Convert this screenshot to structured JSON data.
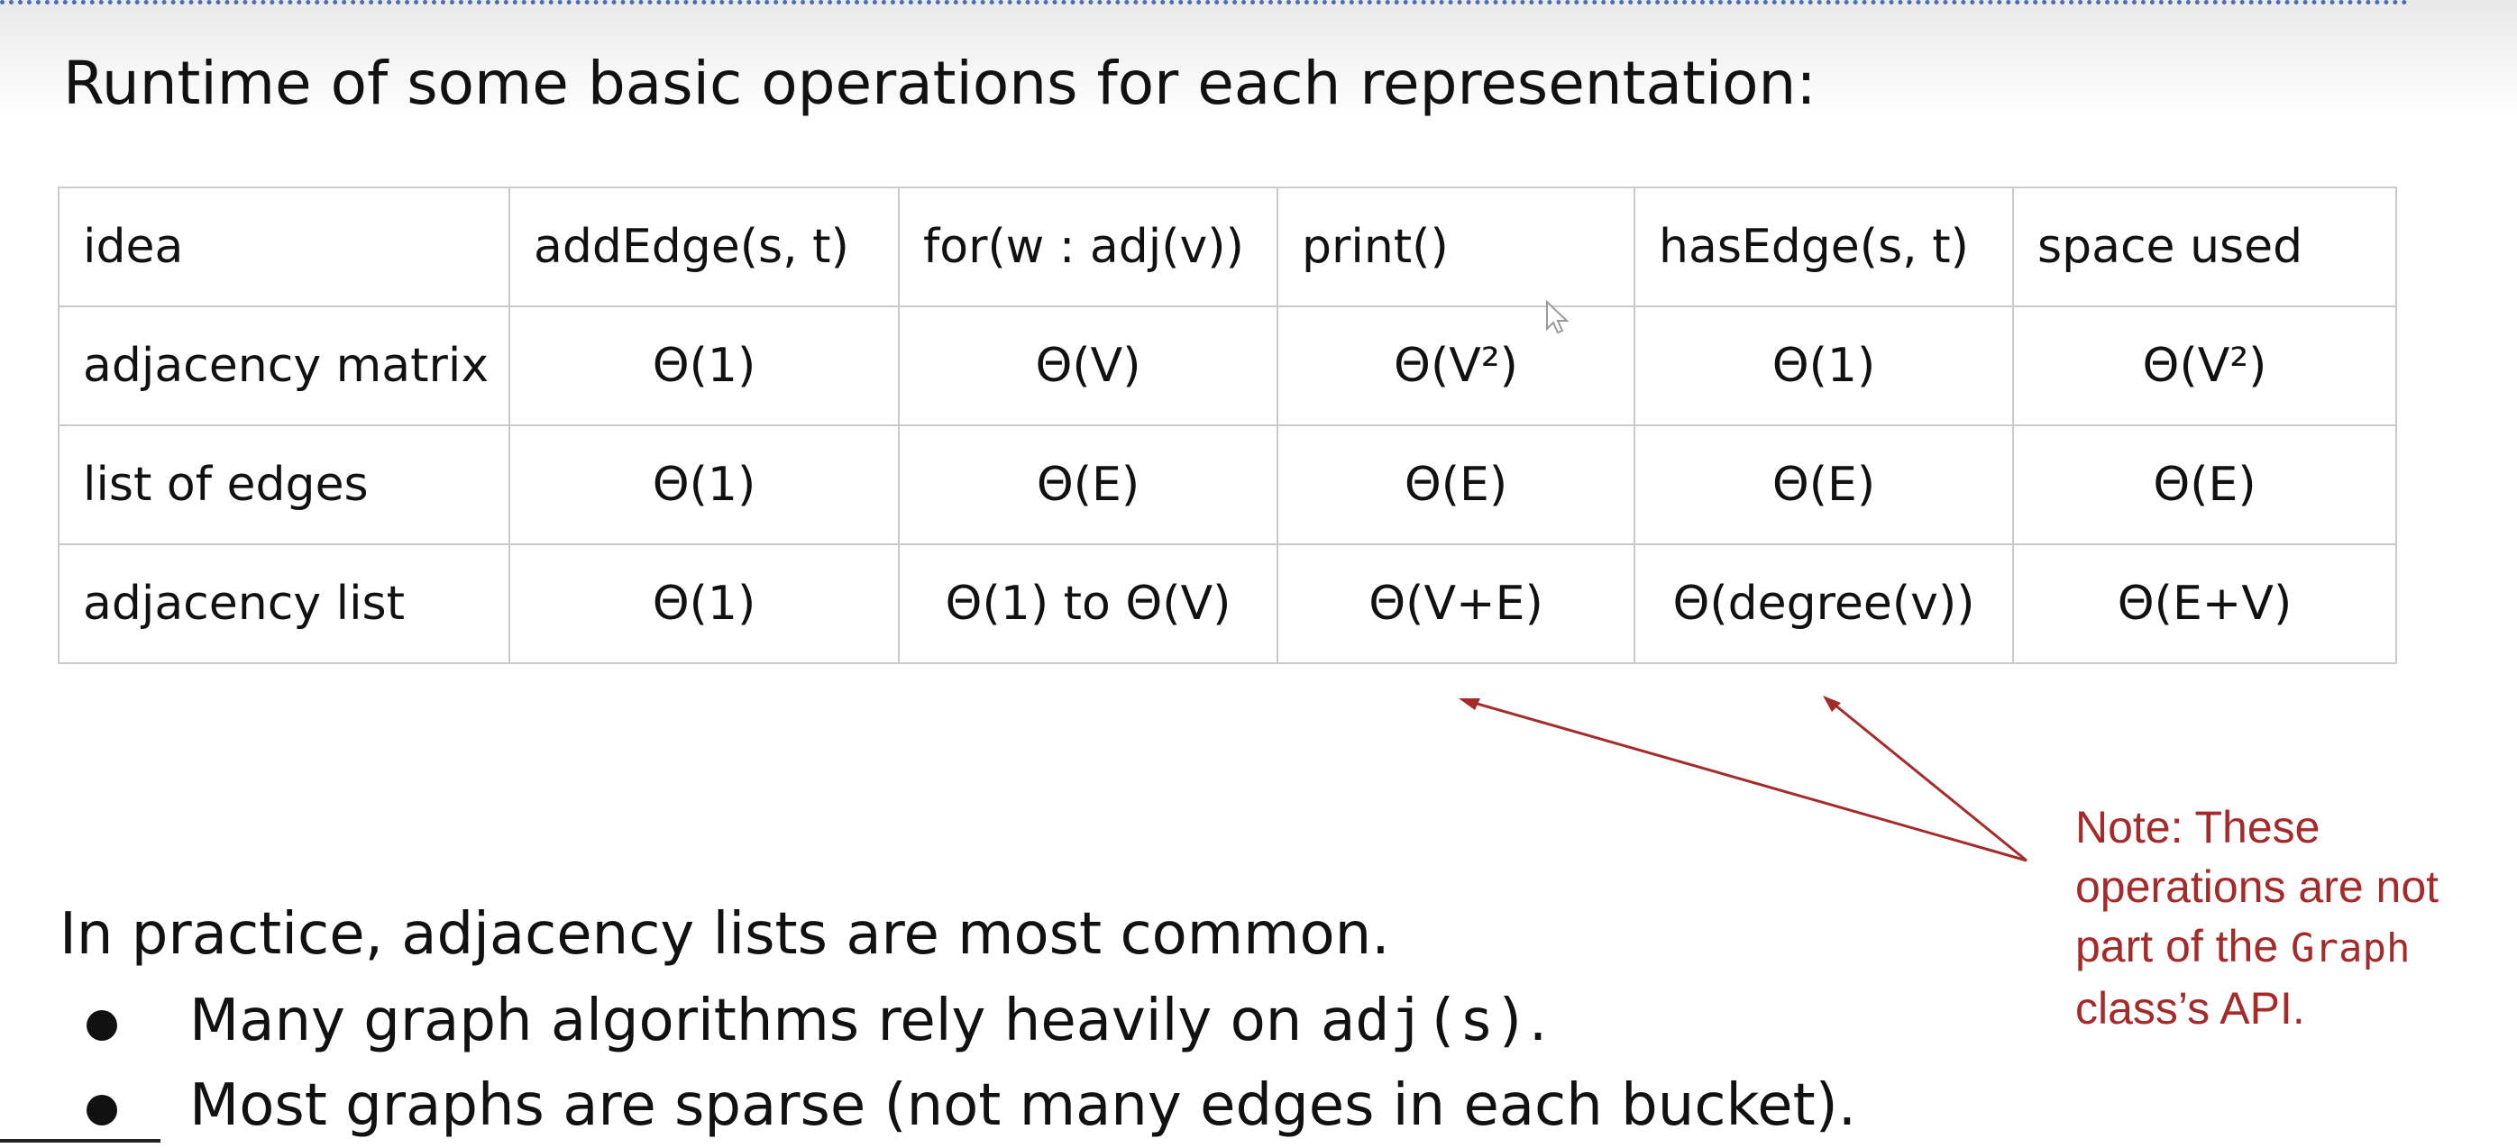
{
  "title": "Runtime of some basic operations for each representation:",
  "table": {
    "headers": [
      "idea",
      "addEdge(s, t)",
      "for(w : adj(v))",
      "print()",
      "hasEdge(s, t)",
      "space used"
    ],
    "rows": [
      [
        "adjacency matrix",
        "Θ(1)",
        "Θ(V)",
        "Θ(V²)",
        "Θ(1)",
        "Θ(V²)"
      ],
      [
        "list of edges",
        "Θ(1)",
        "Θ(E)",
        "Θ(E)",
        "Θ(E)",
        "Θ(E)"
      ],
      [
        "adjacency list",
        "Θ(1)",
        "Θ(1) to Θ(V)",
        "Θ(V+E)",
        "Θ(degree(v))",
        "Θ(E+V)"
      ]
    ]
  },
  "note": {
    "before": "Note: These operations are not part of the ",
    "code": "Graph",
    "after": " class’s API."
  },
  "practice": {
    "heading": "In practice, adjacency lists are most common.",
    "bullet1_text": "Many graph algorithms rely heavily on ",
    "bullet1_code": "adj(s)",
    "bullet1_end": ".",
    "bullet2_text": "Most graphs are sparse (not many edges in each bucket)."
  },
  "colors": {
    "note_text": "#a52a2a",
    "arrow": "#a52a2a",
    "table_border": "#c9c9c9",
    "dotted_rule": "#4a6fb0"
  },
  "icons": [
    "mouse-cursor-icon",
    "bullet-dot-icon"
  ]
}
